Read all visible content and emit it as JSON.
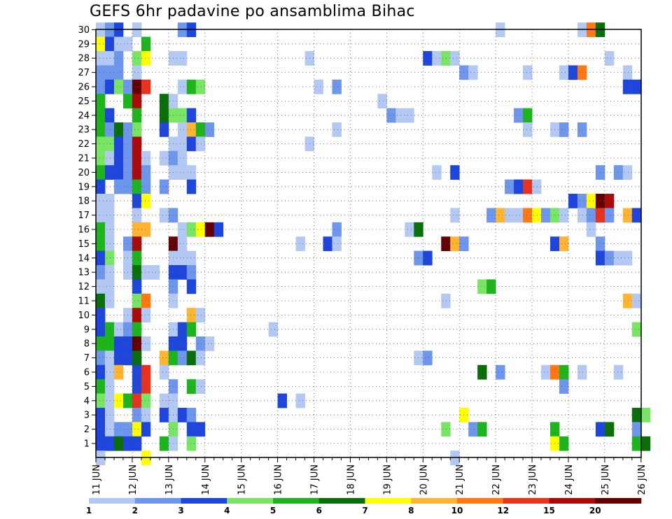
{
  "chart_data": {
    "type": "heatmap",
    "title": "GEFS 6hr padavine po ansamblima Bihac",
    "xlabel": "",
    "ylabel": "",
    "x_ticks": [
      "11 JUN",
      "12 JUN",
      "13 JUN",
      "14 JUN",
      "15 JUN",
      "16 JUN",
      "17 JUN",
      "18 JUN",
      "19 JUN",
      "20 JUN",
      "21 JUN",
      "22 JUN",
      "23 JUN",
      "24 JUN",
      "25 JUN",
      "26 JUN"
    ],
    "y_ticks": [
      "1",
      "2",
      "3",
      "4",
      "5",
      "6",
      "7",
      "8",
      "9",
      "10",
      "11",
      "12",
      "13",
      "14",
      "15",
      "16",
      "17",
      "18",
      "19",
      "20",
      "21",
      "22",
      "23",
      "24",
      "25",
      "26",
      "27",
      "28",
      "29",
      "30"
    ],
    "grid": true,
    "legend_placement": "bottom",
    "color_scale": {
      "thresholds": [
        "1",
        "2",
        "3",
        "4",
        "5",
        "6",
        "7",
        "8",
        "10",
        "12",
        "15",
        "20"
      ],
      "colors": [
        "#b4c8f4",
        "#6e96ec",
        "#1e46dc",
        "#78e664",
        "#1eb41e",
        "#0a6e0a",
        "#ffff00",
        "#ffb432",
        "#ff7814",
        "#e6321e",
        "#aa0a0a",
        "#640000"
      ]
    },
    "cell_encoding": "cells[i] = [forecast_step_6h_from_11_JUN_00Z, ensemble_member, color_class_1_to_12]",
    "cells": [
      [
        0,
        30,
        1
      ],
      [
        1,
        30,
        2
      ],
      [
        2,
        30,
        3
      ],
      [
        4,
        30,
        1
      ],
      [
        9,
        30,
        2
      ],
      [
        10,
        30,
        3
      ],
      [
        44,
        30,
        1
      ],
      [
        53,
        30,
        1
      ],
      [
        54,
        30,
        9
      ],
      [
        55,
        30,
        6
      ],
      [
        0,
        29,
        7
      ],
      [
        1,
        29,
        3
      ],
      [
        2,
        29,
        1
      ],
      [
        3,
        29,
        1
      ],
      [
        5,
        29,
        5
      ],
      [
        0,
        28,
        1
      ],
      [
        1,
        28,
        1
      ],
      [
        2,
        28,
        2
      ],
      [
        4,
        28,
        4
      ],
      [
        5,
        28,
        7
      ],
      [
        8,
        28,
        1
      ],
      [
        9,
        28,
        1
      ],
      [
        23,
        28,
        1
      ],
      [
        36,
        28,
        3
      ],
      [
        37,
        28,
        1
      ],
      [
        38,
        28,
        4
      ],
      [
        39,
        28,
        1
      ],
      [
        56,
        28,
        1
      ],
      [
        0,
        27,
        2
      ],
      [
        1,
        27,
        2
      ],
      [
        2,
        27,
        2
      ],
      [
        4,
        27,
        1
      ],
      [
        40,
        27,
        2
      ],
      [
        41,
        27,
        1
      ],
      [
        47,
        27,
        1
      ],
      [
        51,
        27,
        1
      ],
      [
        52,
        27,
        3
      ],
      [
        53,
        27,
        9
      ],
      [
        58,
        27,
        1
      ],
      [
        0,
        26,
        2
      ],
      [
        1,
        26,
        3
      ],
      [
        2,
        26,
        4
      ],
      [
        3,
        26,
        2
      ],
      [
        4,
        26,
        12
      ],
      [
        5,
        26,
        10
      ],
      [
        9,
        26,
        1
      ],
      [
        10,
        26,
        5
      ],
      [
        11,
        26,
        4
      ],
      [
        24,
        26,
        1
      ],
      [
        26,
        26,
        2
      ],
      [
        58,
        26,
        3
      ],
      [
        59,
        26,
        3
      ],
      [
        0,
        25,
        5
      ],
      [
        3,
        25,
        5
      ],
      [
        4,
        25,
        11
      ],
      [
        7,
        25,
        6
      ],
      [
        8,
        25,
        1
      ],
      [
        31,
        25,
        1
      ],
      [
        0,
        24,
        5
      ],
      [
        1,
        24,
        3
      ],
      [
        4,
        24,
        5
      ],
      [
        7,
        24,
        6
      ],
      [
        8,
        24,
        4
      ],
      [
        9,
        24,
        4
      ],
      [
        10,
        24,
        3
      ],
      [
        32,
        24,
        2
      ],
      [
        33,
        24,
        1
      ],
      [
        34,
        24,
        1
      ],
      [
        46,
        24,
        2
      ],
      [
        47,
        24,
        5
      ],
      [
        0,
        23,
        5
      ],
      [
        1,
        23,
        2
      ],
      [
        2,
        23,
        6
      ],
      [
        3,
        23,
        2
      ],
      [
        4,
        23,
        4
      ],
      [
        7,
        23,
        3
      ],
      [
        9,
        23,
        1
      ],
      [
        10,
        23,
        8
      ],
      [
        11,
        23,
        5
      ],
      [
        12,
        23,
        2
      ],
      [
        26,
        23,
        1
      ],
      [
        47,
        23,
        1
      ],
      [
        50,
        23,
        1
      ],
      [
        51,
        23,
        2
      ],
      [
        53,
        23,
        2
      ],
      [
        0,
        22,
        4
      ],
      [
        1,
        22,
        4
      ],
      [
        2,
        22,
        3
      ],
      [
        3,
        22,
        2
      ],
      [
        4,
        22,
        11
      ],
      [
        8,
        22,
        1
      ],
      [
        9,
        22,
        1
      ],
      [
        10,
        22,
        3
      ],
      [
        11,
        22,
        1
      ],
      [
        23,
        22,
        1
      ],
      [
        0,
        21,
        4
      ],
      [
        1,
        21,
        1
      ],
      [
        2,
        21,
        3
      ],
      [
        3,
        21,
        2
      ],
      [
        4,
        21,
        11
      ],
      [
        5,
        21,
        1
      ],
      [
        7,
        21,
        1
      ],
      [
        8,
        21,
        2
      ],
      [
        9,
        21,
        1
      ],
      [
        0,
        20,
        5
      ],
      [
        1,
        20,
        3
      ],
      [
        2,
        20,
        3
      ],
      [
        3,
        20,
        2
      ],
      [
        4,
        20,
        11
      ],
      [
        5,
        20,
        2
      ],
      [
        8,
        20,
        1
      ],
      [
        9,
        20,
        1
      ],
      [
        10,
        20,
        1
      ],
      [
        37,
        20,
        1
      ],
      [
        39,
        20,
        3
      ],
      [
        55,
        20,
        2
      ],
      [
        57,
        20,
        2
      ],
      [
        58,
        20,
        1
      ],
      [
        0,
        19,
        3
      ],
      [
        2,
        19,
        2
      ],
      [
        3,
        19,
        2
      ],
      [
        4,
        19,
        5
      ],
      [
        5,
        19,
        2
      ],
      [
        7,
        19,
        2
      ],
      [
        10,
        19,
        3
      ],
      [
        45,
        19,
        2
      ],
      [
        46,
        19,
        3
      ],
      [
        47,
        19,
        10
      ],
      [
        48,
        19,
        1
      ],
      [
        0,
        18,
        1
      ],
      [
        1,
        18,
        1
      ],
      [
        4,
        18,
        3
      ],
      [
        5,
        18,
        7
      ],
      [
        52,
        18,
        3
      ],
      [
        53,
        18,
        2
      ],
      [
        54,
        18,
        7
      ],
      [
        55,
        18,
        12
      ],
      [
        56,
        18,
        11
      ],
      [
        0,
        17,
        1
      ],
      [
        1,
        17,
        1
      ],
      [
        4,
        17,
        1
      ],
      [
        7,
        17,
        1
      ],
      [
        8,
        17,
        2
      ],
      [
        39,
        17,
        1
      ],
      [
        43,
        17,
        2
      ],
      [
        44,
        17,
        8
      ],
      [
        45,
        17,
        1
      ],
      [
        46,
        17,
        1
      ],
      [
        47,
        17,
        9
      ],
      [
        48,
        17,
        7
      ],
      [
        49,
        17,
        2
      ],
      [
        50,
        17,
        4
      ],
      [
        51,
        17,
        1
      ],
      [
        53,
        17,
        1
      ],
      [
        54,
        17,
        2
      ],
      [
        55,
        17,
        10
      ],
      [
        56,
        17,
        2
      ],
      [
        58,
        17,
        8
      ],
      [
        59,
        17,
        3
      ],
      [
        0,
        16,
        5
      ],
      [
        1,
        16,
        1
      ],
      [
        4,
        16,
        8
      ],
      [
        5,
        16,
        8
      ],
      [
        9,
        16,
        1
      ],
      [
        10,
        16,
        4
      ],
      [
        11,
        16,
        7
      ],
      [
        12,
        16,
        12
      ],
      [
        13,
        16,
        3
      ],
      [
        26,
        16,
        2
      ],
      [
        34,
        16,
        1
      ],
      [
        35,
        16,
        6
      ],
      [
        54,
        16,
        1
      ],
      [
        0,
        15,
        5
      ],
      [
        1,
        15,
        1
      ],
      [
        3,
        15,
        2
      ],
      [
        4,
        15,
        11
      ],
      [
        8,
        15,
        12
      ],
      [
        9,
        15,
        1
      ],
      [
        22,
        15,
        1
      ],
      [
        25,
        15,
        3
      ],
      [
        26,
        15,
        1
      ],
      [
        38,
        15,
        12
      ],
      [
        39,
        15,
        8
      ],
      [
        40,
        15,
        2
      ],
      [
        50,
        15,
        3
      ],
      [
        51,
        15,
        8
      ],
      [
        55,
        15,
        2
      ],
      [
        0,
        14,
        3
      ],
      [
        1,
        14,
        4
      ],
      [
        3,
        14,
        1
      ],
      [
        4,
        14,
        5
      ],
      [
        8,
        14,
        1
      ],
      [
        9,
        14,
        1
      ],
      [
        10,
        14,
        1
      ],
      [
        35,
        14,
        2
      ],
      [
        36,
        14,
        3
      ],
      [
        55,
        14,
        3
      ],
      [
        56,
        14,
        2
      ],
      [
        57,
        14,
        1
      ],
      [
        58,
        14,
        1
      ],
      [
        0,
        13,
        2
      ],
      [
        1,
        13,
        1
      ],
      [
        3,
        13,
        1
      ],
      [
        4,
        13,
        6
      ],
      [
        5,
        13,
        1
      ],
      [
        6,
        13,
        1
      ],
      [
        8,
        13,
        3
      ],
      [
        9,
        13,
        3
      ],
      [
        10,
        13,
        2
      ],
      [
        0,
        12,
        1
      ],
      [
        1,
        12,
        1
      ],
      [
        4,
        12,
        3
      ],
      [
        8,
        12,
        2
      ],
      [
        10,
        12,
        3
      ],
      [
        42,
        12,
        4
      ],
      [
        43,
        12,
        5
      ],
      [
        0,
        11,
        6
      ],
      [
        1,
        11,
        1
      ],
      [
        4,
        11,
        4
      ],
      [
        5,
        11,
        9
      ],
      [
        8,
        11,
        1
      ],
      [
        38,
        11,
        1
      ],
      [
        58,
        11,
        8
      ],
      [
        59,
        11,
        1
      ],
      [
        0,
        10,
        3
      ],
      [
        3,
        10,
        1
      ],
      [
        4,
        10,
        11
      ],
      [
        5,
        10,
        1
      ],
      [
        10,
        10,
        8
      ],
      [
        11,
        10,
        1
      ],
      [
        0,
        9,
        3
      ],
      [
        1,
        9,
        5
      ],
      [
        2,
        9,
        1
      ],
      [
        3,
        9,
        2
      ],
      [
        4,
        9,
        5
      ],
      [
        8,
        9,
        1
      ],
      [
        9,
        9,
        3
      ],
      [
        10,
        9,
        5
      ],
      [
        19,
        9,
        1
      ],
      [
        59,
        9,
        4
      ],
      [
        0,
        8,
        5
      ],
      [
        1,
        8,
        5
      ],
      [
        2,
        8,
        3
      ],
      [
        3,
        8,
        3
      ],
      [
        4,
        8,
        12
      ],
      [
        5,
        8,
        1
      ],
      [
        8,
        8,
        3
      ],
      [
        9,
        8,
        3
      ],
      [
        11,
        8,
        2
      ],
      [
        12,
        8,
        1
      ],
      [
        0,
        7,
        2
      ],
      [
        1,
        7,
        1
      ],
      [
        2,
        7,
        3
      ],
      [
        3,
        7,
        3
      ],
      [
        4,
        7,
        6
      ],
      [
        7,
        7,
        8
      ],
      [
        8,
        7,
        5
      ],
      [
        9,
        7,
        2
      ],
      [
        10,
        7,
        6
      ],
      [
        11,
        7,
        1
      ],
      [
        35,
        7,
        1
      ],
      [
        36,
        7,
        2
      ],
      [
        0,
        6,
        3
      ],
      [
        1,
        6,
        1
      ],
      [
        2,
        6,
        8
      ],
      [
        4,
        6,
        3
      ],
      [
        5,
        6,
        10
      ],
      [
        7,
        6,
        1
      ],
      [
        42,
        6,
        6
      ],
      [
        44,
        6,
        2
      ],
      [
        49,
        6,
        1
      ],
      [
        50,
        6,
        9
      ],
      [
        51,
        6,
        5
      ],
      [
        53,
        6,
        1
      ],
      [
        57,
        6,
        1
      ],
      [
        0,
        5,
        5
      ],
      [
        1,
        5,
        1
      ],
      [
        4,
        5,
        3
      ],
      [
        5,
        5,
        10
      ],
      [
        8,
        5,
        2
      ],
      [
        10,
        5,
        5
      ],
      [
        11,
        5,
        1
      ],
      [
        51,
        5,
        2
      ],
      [
        0,
        4,
        4
      ],
      [
        1,
        4,
        1
      ],
      [
        2,
        4,
        7
      ],
      [
        3,
        4,
        5
      ],
      [
        4,
        4,
        10
      ],
      [
        5,
        4,
        4
      ],
      [
        7,
        4,
        1
      ],
      [
        8,
        4,
        1
      ],
      [
        20,
        4,
        3
      ],
      [
        22,
        4,
        1
      ],
      [
        0,
        3,
        3
      ],
      [
        1,
        3,
        1
      ],
      [
        4,
        3,
        2
      ],
      [
        5,
        3,
        1
      ],
      [
        7,
        3,
        3
      ],
      [
        8,
        3,
        1
      ],
      [
        9,
        3,
        3
      ],
      [
        10,
        3,
        2
      ],
      [
        40,
        3,
        7
      ],
      [
        59,
        3,
        6
      ],
      [
        60,
        3,
        4
      ],
      [
        0,
        2,
        3
      ],
      [
        1,
        2,
        1
      ],
      [
        2,
        2,
        2
      ],
      [
        3,
        2,
        2
      ],
      [
        4,
        2,
        7
      ],
      [
        5,
        2,
        3
      ],
      [
        8,
        2,
        4
      ],
      [
        10,
        2,
        3
      ],
      [
        11,
        2,
        3
      ],
      [
        38,
        2,
        4
      ],
      [
        41,
        2,
        2
      ],
      [
        42,
        2,
        5
      ],
      [
        50,
        2,
        5
      ],
      [
        55,
        2,
        3
      ],
      [
        56,
        2,
        6
      ],
      [
        59,
        2,
        2
      ],
      [
        0,
        1,
        3
      ],
      [
        1,
        1,
        3
      ],
      [
        2,
        1,
        6
      ],
      [
        3,
        1,
        3
      ],
      [
        4,
        1,
        3
      ],
      [
        7,
        1,
        5
      ],
      [
        8,
        1,
        1
      ],
      [
        10,
        1,
        4
      ],
      [
        50,
        1,
        7
      ],
      [
        51,
        1,
        5
      ],
      [
        59,
        1,
        5
      ],
      [
        60,
        1,
        6
      ],
      [
        0,
        0,
        1
      ],
      [
        5,
        0,
        7
      ],
      [
        39,
        0,
        1
      ]
    ]
  }
}
